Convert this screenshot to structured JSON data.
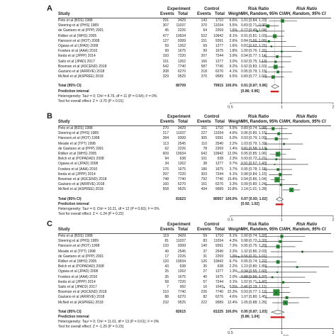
{
  "panels": [
    {
      "label": "A",
      "rows": [
        {
          "study": "Peto et al (BDS) 1988",
          "e1": "291",
          "t1": "3429",
          "e2": "143",
          "t2": "1710",
          "w": "6.6%",
          "rr": "1.01 [0.84; 1.23]",
          "est": 1.01,
          "lo": 0.84,
          "hi": 1.23
        },
        {
          "study": "Steering et al (PHS) 1989",
          "e1": "307",
          "t1": "11037",
          "e2": "370",
          "t2": "11034",
          "w": "5.5%",
          "rr": "0.83 [0.71; 0.96]",
          "est": 0.83,
          "lo": 0.71,
          "hi": 0.96
        },
        {
          "study": "de Gaetano et al (PPP) 2001",
          "e1": "45",
          "t1": "2226",
          "e2": "64",
          "t2": "2269",
          "w": "1.6%",
          "rr": "0.72 [0.49; 1.04]",
          "est": 0.72,
          "lo": 0.49,
          "hi": 1.04
        },
        {
          "study": "Ridker et al (WHS) 2005",
          "e1": "477",
          "t1": "19934",
          "e2": "522",
          "t2": "19942",
          "w": "8.1%",
          "rr": "0.91 [0.81; 1.03]",
          "est": 0.91,
          "lo": 0.81,
          "hi": 1.03
        },
        {
          "study": "Hansson et al (HOT) 2008",
          "e1": "127",
          "t1": "9399",
          "e2": "151",
          "t2": "9391",
          "w": "2.6%",
          "rr": "0.84 [0.66; 1.06]",
          "est": 0.84,
          "lo": 0.66,
          "hi": 1.06
        },
        {
          "study": "Ogawa et al (JPAD) 2008",
          "e1": "59",
          "t1": "1262",
          "e2": "69",
          "t2": "1277",
          "w": "1.6%",
          "rr": "0.87 [0.62; 1.21]",
          "est": 0.87,
          "lo": 0.62,
          "hi": 1.21
        },
        {
          "study": "Fowkes et al (AAA) 2010",
          "e1": "99",
          "t1": "1675",
          "e2": "99",
          "t2": "1675",
          "w": "1.8%",
          "rr": "1.00 [0.76; 1.31]",
          "est": 1.0,
          "lo": 0.76,
          "hi": 1.31
        },
        {
          "study": "Ikeda et al (JPPP) 2014",
          "e1": "193",
          "t1": "7220",
          "e2": "207",
          "t2": "7244",
          "w": "3.9%",
          "rr": "0.94 [0.77; 1.14]",
          "est": 0.94,
          "lo": 0.77,
          "hi": 1.14
        },
        {
          "study": "Saito et al (JPAD) 2017",
          "e1": "151",
          "t1": "1262",
          "e2": "166",
          "t2": "1277",
          "w": "3.0%",
          "rr": "0.92 [0.75; 1.13]",
          "est": 0.92,
          "lo": 0.75,
          "hi": 1.13
        },
        {
          "study": "Bowman et al (ASCEND) 2018",
          "e1": "542",
          "t1": "7740",
          "e2": "587",
          "t2": "7740",
          "w": "9.2%",
          "rr": "0.92 [0.83; 1.03]",
          "est": 0.92,
          "lo": 0.83,
          "hi": 1.03
        },
        {
          "study": "Gaziano et al (ARRIVE) 2018",
          "e1": "208",
          "t1": "6270",
          "e2": "218",
          "t2": "6276",
          "w": "4.1%",
          "rr": "0.95 [0.79; 1.15]",
          "est": 0.95,
          "lo": 0.79,
          "hi": 1.15
        },
        {
          "study": "McNeil et al (ASPREE) 2018",
          "e1": "329",
          "t1": "9525",
          "e2": "370",
          "t2": "9589",
          "w": "6.5%",
          "rr": "0.89 [0.77; 1.03]",
          "est": 0.89,
          "lo": 0.77,
          "hi": 1.03
        }
      ],
      "total": {
        "label": "Total (95% CI)",
        "t1": "80709",
        "t2": "79915",
        "w": "100.0%",
        "rr": "0.91 [0.87; 0.96]",
        "est": 0.91,
        "lo": 0.87,
        "hi": 0.96
      },
      "pi": {
        "label": "Prediction interval",
        "rr": "[0.86; 0.96]",
        "lo": 0.86,
        "hi": 0.96
      },
      "het": "Heterogeneity: Tau² = 0; Chi² = 8.76, df = 11 (P = 0.64); I² = 0%",
      "overall": "Test for overall effect: Z = -3.70 (P < 0.01)",
      "ticks": [
        "0.5",
        "1",
        "2"
      ],
      "xlabel": ""
    },
    {
      "label": "B",
      "rows": [
        {
          "study": "Peto et al (BDS) 1988",
          "e1": "270",
          "t1": "3429",
          "e2": "151",
          "t2": "1710",
          "w": "5.5%",
          "rr": "0.89 [0.74; 1.08]",
          "est": 0.89,
          "lo": 0.74,
          "hi": 1.08
        },
        {
          "study": "Steering et al (PHS) 1989",
          "e1": "217",
          "t1": "11037",
          "e2": "227",
          "t2": "11034",
          "w": "4.6%",
          "rr": "0.96 [0.80; 1.15]",
          "est": 0.96,
          "lo": 0.8,
          "hi": 1.15
        },
        {
          "study": "Hansson et al (HOT) 1998",
          "e1": "284",
          "t1": "9399",
          "e2": "305",
          "t2": "9391",
          "w": "6.0%",
          "rr": "0.93 [0.79; 1.09]",
          "est": 0.93,
          "lo": 0.79,
          "hi": 1.09
        },
        {
          "study": "Meade et al (TPT) 1998",
          "e1": "113",
          "t1": "2545",
          "e2": "110",
          "t2": "2540",
          "w": "2.2%",
          "rr": "1.03 [0.79; 1.33]",
          "est": 1.03,
          "lo": 0.79,
          "hi": 1.33
        },
        {
          "study": "de Gaetano et al (PPP) 2001",
          "e1": "62",
          "t1": "2226",
          "e2": "78",
          "t2": "2269",
          "w": "1.4%",
          "rr": "0.81 [0.58; 1.13]",
          "est": 0.81,
          "lo": 0.58,
          "hi": 1.13
        },
        {
          "study": "Ridker et al (WHS) 2005",
          "e1": "609",
          "t1": "19934",
          "e2": "642",
          "t2": "19942",
          "w": "12.0%",
          "rr": "0.95 [0.85; 1.06]",
          "est": 0.95,
          "lo": 0.85,
          "hi": 1.06
        },
        {
          "study": "Belch et al (POPADAD) 2008",
          "e1": "94",
          "t1": "638",
          "e2": "101",
          "t2": "638",
          "w": "2.3%",
          "rr": "0.93 [0.72; 1.21]",
          "est": 0.93,
          "lo": 0.72,
          "hi": 1.21
        },
        {
          "study": "Ogawa et al (JPAD) 2008",
          "e1": "34",
          "t1": "1262",
          "e2": "38",
          "t2": "1277",
          "w": "0.7%",
          "rr": "0.91 [0.57; 1.43]",
          "est": 0.91,
          "lo": 0.57,
          "hi": 1.43
        },
        {
          "study": "Fowkes et al (AAA) 2010",
          "e1": "176",
          "t1": "1675",
          "e2": "186",
          "t2": "1675",
          "w": "3.7%",
          "rr": "0.95 [0.78; 1.15]",
          "est": 0.95,
          "lo": 0.78,
          "hi": 1.15
        },
        {
          "study": "Ikeda et al (JPPP) 2014",
          "e1": "297",
          "t1": "7220",
          "e2": "303",
          "t2": "7244",
          "w": "6.1%",
          "rr": "0.98 [0.84; 1.15]",
          "est": 0.98,
          "lo": 0.84,
          "hi": 1.15
        },
        {
          "study": "Bowman et al (ASCEND) 2018",
          "e1": "748",
          "t1": "7740",
          "e2": "792",
          "t2": "7740",
          "w": "15.4%",
          "rr": "0.94 [0.86; 1.04]",
          "est": 0.94,
          "lo": 0.86,
          "hi": 1.04
        },
        {
          "study": "Gaziano et al (ARRIVE) 2018",
          "e1": "160",
          "t1": "6270",
          "e2": "161",
          "t2": "6276",
          "w": "3.3%",
          "rr": "0.99 [0.80; 1.24]",
          "est": 0.99,
          "lo": 0.8,
          "hi": 1.24
        },
        {
          "study": "McNeil et al (ASPREE) 2018",
          "e1": "558",
          "t1": "9525",
          "e2": "494",
          "t2": "9589",
          "w": "10.8%",
          "rr": "1.14 [1.01; 1.28]",
          "est": 1.14,
          "lo": 1.01,
          "hi": 1.28
        }
      ],
      "total": {
        "label": "Total (95% CI)",
        "t1": "81623",
        "t2": "80057",
        "w": "100.0%",
        "rr": "0.97 [0.93; 1.02]",
        "est": 0.97,
        "lo": 0.93,
        "hi": 1.02
      },
      "pi": {
        "label": "Prediction interval",
        "rr": "[0.92; 1.02]",
        "lo": 0.92,
        "hi": 1.02
      },
      "het": "Heterogeneity: Tau² = 0; Chi² = 10.21, df = 12 (P = 0.60); I² = 0%",
      "overall": "Test for overall effect: Z = -1.24 (P = 0.22)",
      "ticks": [
        "0.5",
        "1",
        "2"
      ],
      "xlabel": ""
    },
    {
      "label": "C",
      "rows": [
        {
          "study": "Peto et al (BDS) 1988",
          "e1": "119",
          "t1": "3429",
          "e2": "59",
          "t2": "1710",
          "w": "5.1%",
          "rr": "1.00 [0.74; 1.37]",
          "est": 1.0,
          "lo": 0.74,
          "hi": 1.37
        },
        {
          "study": "Steering et al (PHS) 1989",
          "e1": "81",
          "t1": "11037",
          "e2": "83",
          "t2": "11034",
          "w": "4.3%",
          "rr": "0.98 [0.72; 1.32]",
          "est": 0.98,
          "lo": 0.72,
          "hi": 1.32
        },
        {
          "study": "Hansson et al (HOT) 1998",
          "e1": "133",
          "t1": "9399",
          "e2": "140",
          "t2": "9391",
          "w": "7.3%",
          "rr": "0.95 [0.75; 1.20]",
          "est": 0.95,
          "lo": 0.75,
          "hi": 1.2
        },
        {
          "study": "Meade et al (TPT) 1998",
          "e1": "49",
          "t1": "2545",
          "e2": "37",
          "t2": "2540",
          "w": "2.3%",
          "rr": "1.32 [0.86; 2.03]",
          "est": 1.32,
          "lo": 0.86,
          "hi": 2.03
        },
        {
          "study": "de Gaetano et al (PPP) 2001",
          "e1": "17",
          "t1": "2226",
          "e2": "31",
          "t2": "2269",
          "w": "1.0%",
          "rr": "0.56 [0.31; 1.01]",
          "est": 0.56,
          "lo": 0.31,
          "hi": 1.01
        },
        {
          "study": "Ridker et al (WHS) 2005",
          "e1": "120",
          "t1": "19934",
          "e2": "126",
          "t2": "19942",
          "w": "6.7%",
          "rr": "0.95 [0.74; 1.22]",
          "est": 0.95,
          "lo": 0.74,
          "hi": 1.22
        },
        {
          "study": "Belch et al (POPADAD) 2008",
          "e1": "43",
          "t1": "638",
          "e2": "35",
          "t2": "638",
          "w": "2.2%",
          "rr": "1.23 [0.80; 1.89]",
          "est": 1.23,
          "lo": 0.8,
          "hi": 1.89
        },
        {
          "study": "Ogawa et al (JPAD) 2008",
          "e1": "25",
          "t1": "1262",
          "e2": "27",
          "t2": "1277",
          "w": "1.3%",
          "rr": "0.94 [0.55; 1.60]",
          "est": 0.94,
          "lo": 0.55,
          "hi": 1.6
        },
        {
          "study": "Fowkes et al (AAA) 2010",
          "e1": "35",
          "t1": "1675",
          "e2": "40",
          "t2": "1675",
          "w": "2.0%",
          "rr": "0.88 [0.56; 1.37]",
          "est": 0.88,
          "lo": 0.56,
          "hi": 1.37
        },
        {
          "study": "Ikeda et al (JPPP) 2014",
          "e1": "58",
          "t1": "7220",
          "e2": "57",
          "t2": "7244",
          "w": "3.1%",
          "rr": "1.02 [0.71; 1.47]",
          "est": 1.02,
          "lo": 0.71,
          "hi": 1.47
        },
        {
          "study": "Saito et al (JPAD2) 2017",
          "e1": "7",
          "t1": "992",
          "e2": "16",
          "t2": "1043",
          "w": "0.5%",
          "rr": "0.46 [0.19; 1.11]",
          "est": 0.46,
          "lo": 0.19,
          "hi": 1.11
        },
        {
          "study": "Bowman et al (ASCEND) 2018",
          "e1": "210",
          "t1": "7740",
          "e2": "226",
          "t2": "7740",
          "w": "22.3%",
          "rr": "0.93 [0.77; 1.12]",
          "est": 0.93,
          "lo": 0.77,
          "hi": 1.12
        },
        {
          "study": "Gaziano et al (ARRIVE) 2018",
          "e1": "88",
          "t1": "6270",
          "e2": "82",
          "t2": "6276",
          "w": "4.6%",
          "rr": "1.07 [0.80; 1.45]",
          "est": 1.07,
          "lo": 0.8,
          "hi": 1.45
        },
        {
          "study": "McNeil et al (ASPREE) 2018",
          "e1": "232",
          "t1": "9525",
          "e2": "222",
          "t2": "9589",
          "w": "12.4%",
          "rr": "1.05 [0.88; 1.26]",
          "est": 1.05,
          "lo": 0.88,
          "hi": 1.26
        }
      ],
      "total": {
        "label": "Total (95% CI)",
        "t1": "82615",
        "t2": "81225",
        "w": "100.0%",
        "rr": "0.95 [0.87; 1.03]",
        "est": 0.95,
        "lo": 0.87,
        "hi": 1.03
      },
      "pi": {
        "label": "Prediction interval",
        "rr": "[0.86; 1.04]",
        "lo": 0.86,
        "hi": 1.04
      },
      "het": "Heterogeneity: Tau² = 0; Chi² = 11.01, df = 13 (P = 0.61); I² = 0%",
      "overall": "Test for overall effect: Z = -1.20 (P = 0.23)",
      "ticks": [
        "0.5",
        "1",
        "2"
      ],
      "xlabel": "RR"
    }
  ],
  "header": {
    "study": "Study",
    "group1": "Experiment",
    "group2": "Control",
    "events": "Events",
    "total": "Total",
    "weight": "Weight",
    "rr_title": "Risk Ratio",
    "rr_method": "MH, Random, 95% CI",
    "plot_title": "Risk Ratio",
    "plot_method": "MH, Random, 95% CI"
  },
  "colors": {
    "box": "#2e8b3a",
    "diamond": "#4a4a4a",
    "pi": "#cc2222",
    "ink": "#222222"
  }
}
